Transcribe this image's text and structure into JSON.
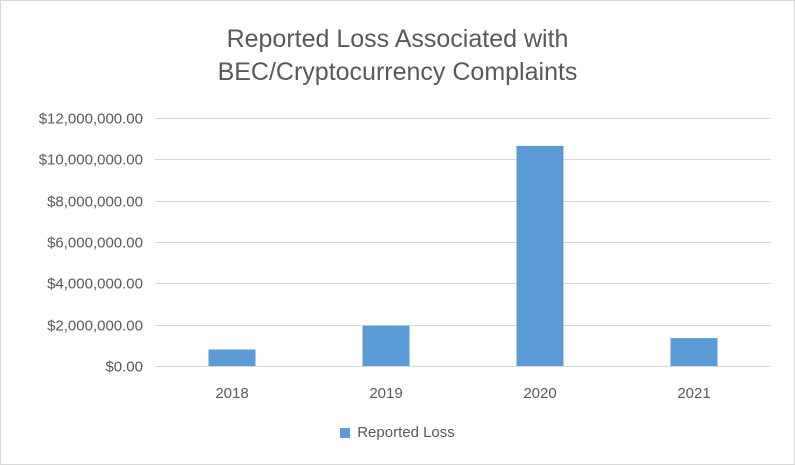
{
  "chart_data": {
    "type": "bar",
    "title_lines": [
      "Reported Loss Associated with",
      "BEC/Cryptocurrency Complaints"
    ],
    "categories": [
      "2018",
      "2019",
      "2020",
      "2021"
    ],
    "series": [
      {
        "name": "Reported Loss",
        "values": [
          800000,
          1950000,
          10650000,
          1350000
        ]
      }
    ],
    "ylim": [
      0,
      12000000
    ],
    "y_ticks": [
      0,
      2000000,
      4000000,
      6000000,
      8000000,
      10000000,
      12000000
    ],
    "y_tick_labels": [
      "$0.00",
      "$2,000,000.00",
      "$4,000,000.00",
      "$6,000,000.00",
      "$8,000,000.00",
      "$10,000,000.00",
      "$12,000,000.00"
    ],
    "grid": true,
    "legend_position": "bottom",
    "bar_color": "#5b9bd5",
    "grid_color": "#d9d9d9"
  }
}
